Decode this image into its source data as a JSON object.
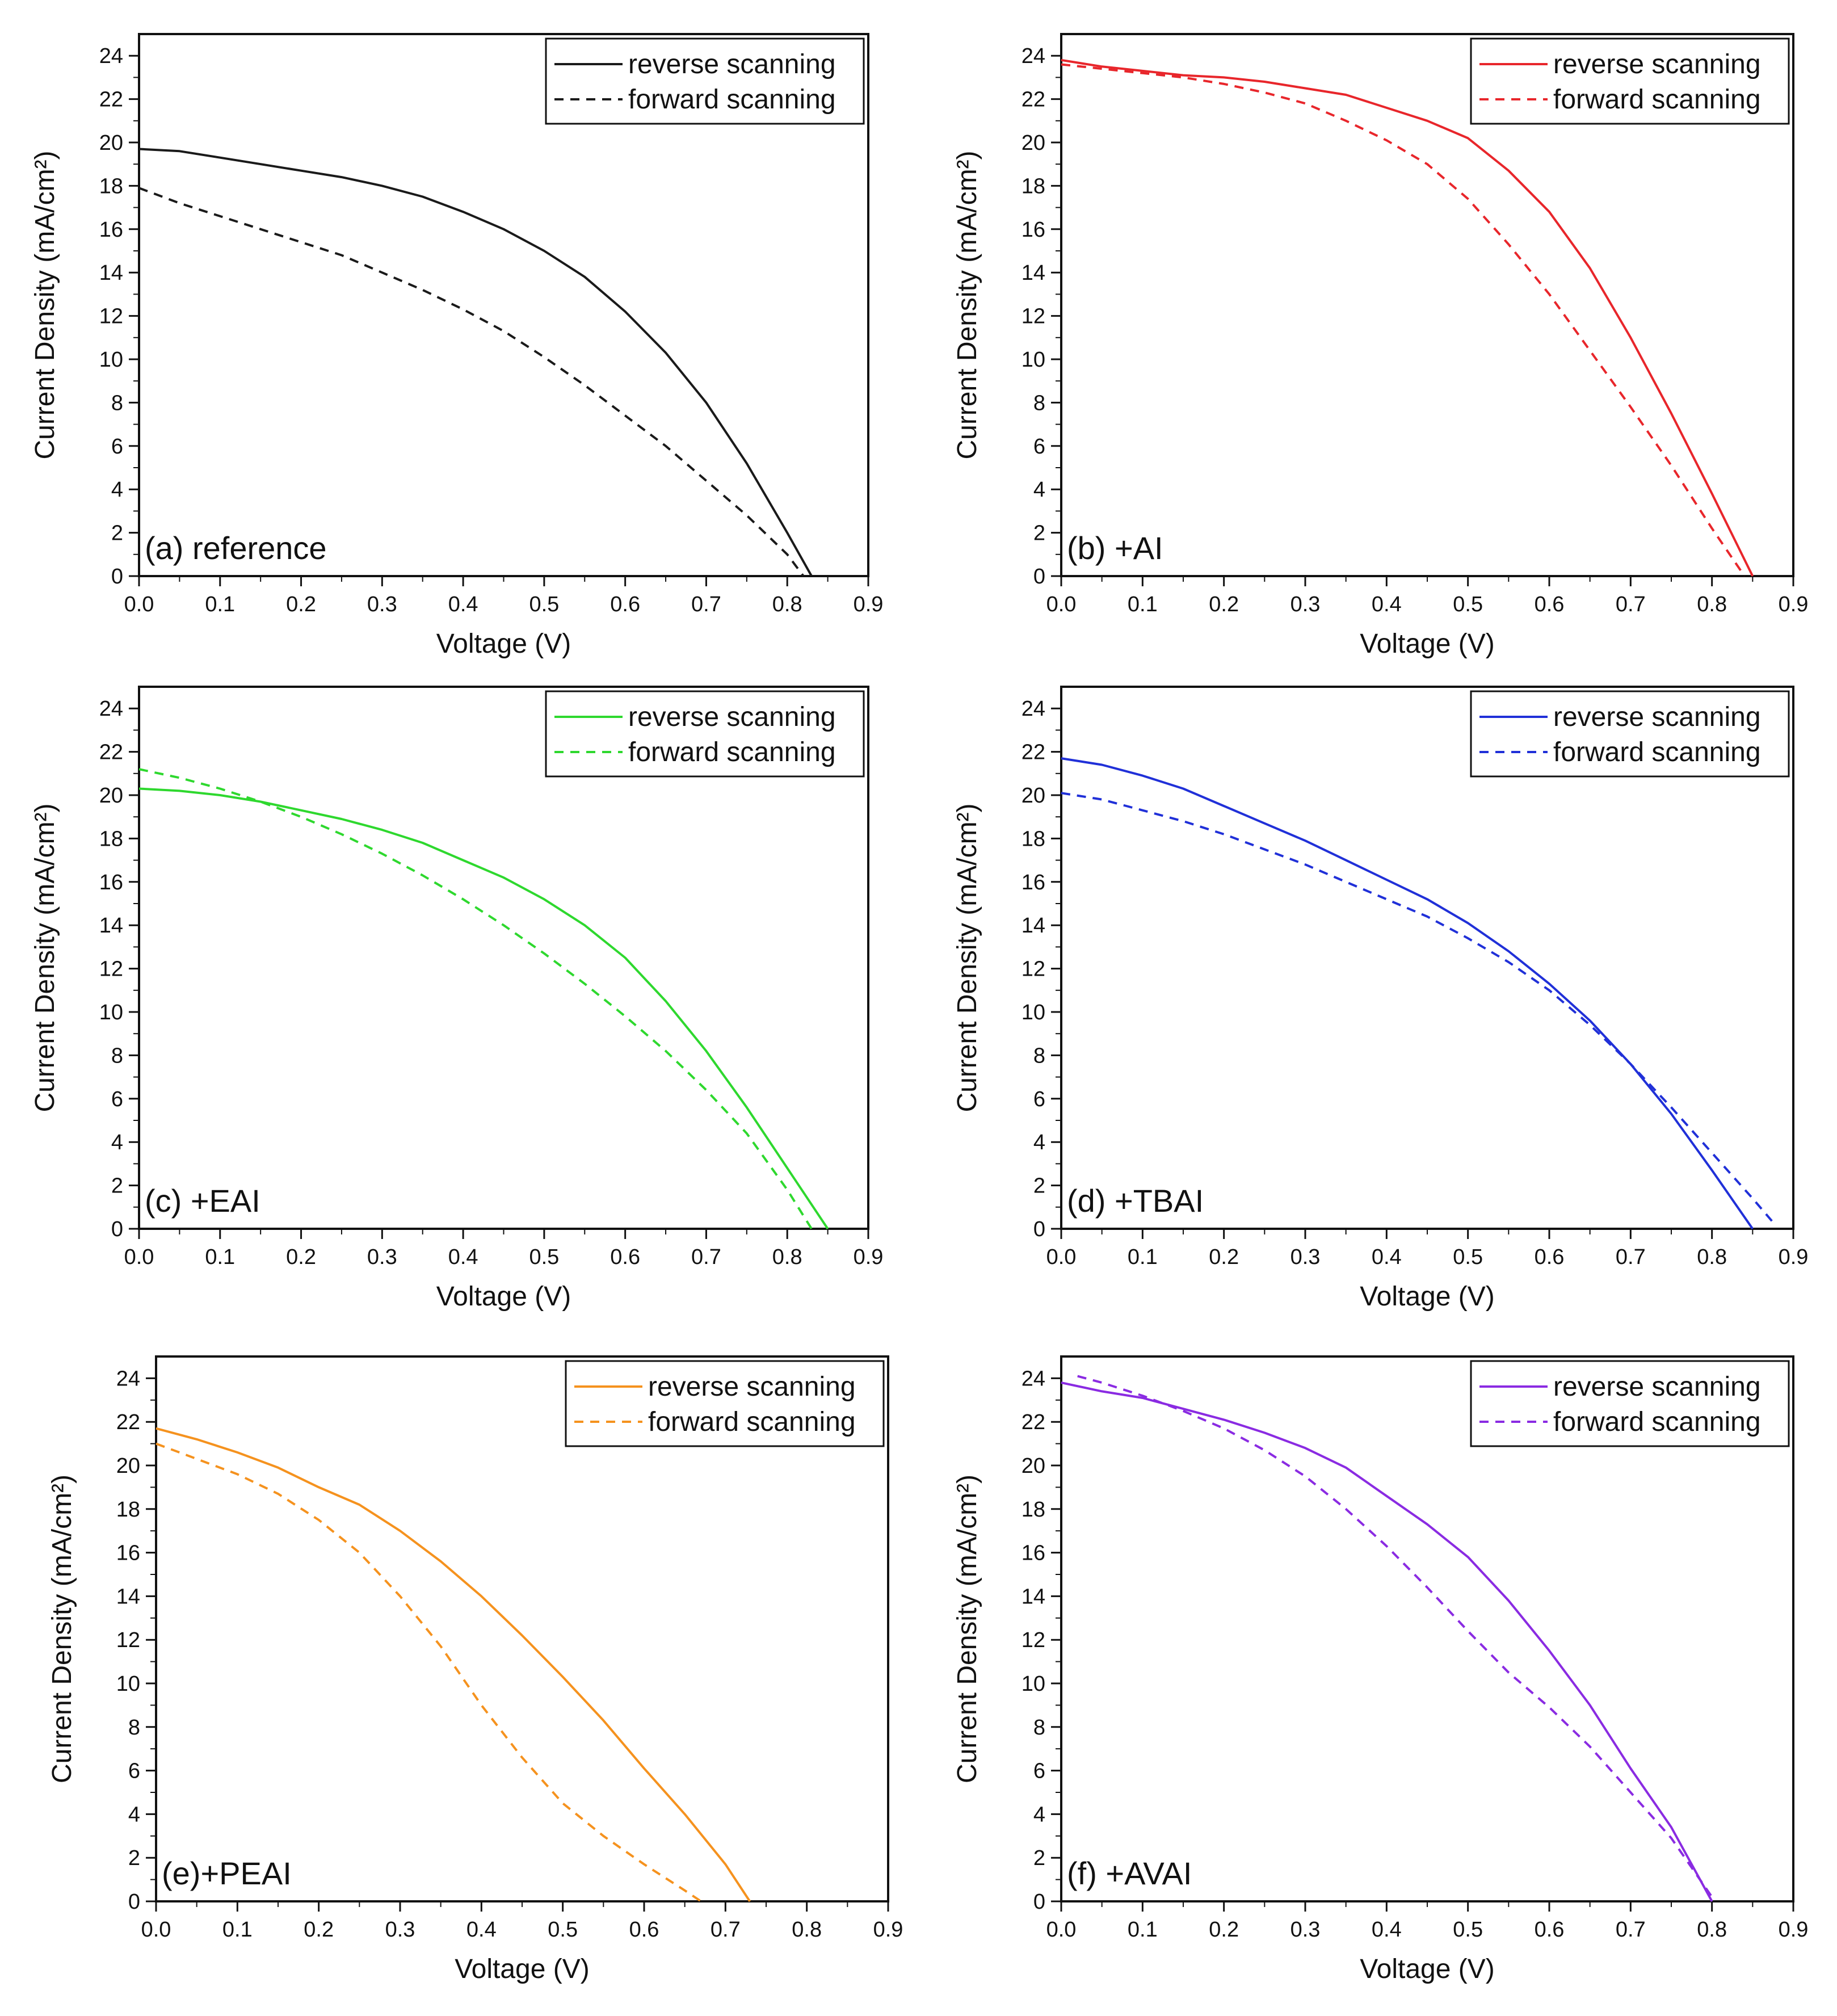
{
  "figure": {
    "series_labels": {
      "reverse": "reverse scanning",
      "forward": "forward scanning"
    }
  },
  "chart_data": [
    {
      "type": "line",
      "panel_label": "(a) reference",
      "xlabel": "Voltage (V)",
      "ylabel": "Current Density (mA/cm²)",
      "xlim": [
        0,
        0.9
      ],
      "ylim": [
        0,
        25
      ],
      "xticks": [
        "0.0",
        "0.1",
        "0.2",
        "0.3",
        "0.4",
        "0.5",
        "0.6",
        "0.7",
        "0.8",
        "0.9"
      ],
      "yticks": [
        "0",
        "2",
        "4",
        "6",
        "8",
        "10",
        "12",
        "14",
        "16",
        "18",
        "20",
        "22",
        "24"
      ],
      "color": "#1a1a1a",
      "legend": [
        "reverse scanning",
        "forward scanning"
      ],
      "series": [
        {
          "name": "reverse scanning",
          "style": "solid",
          "x": [
            0,
            0.05,
            0.1,
            0.15,
            0.2,
            0.25,
            0.3,
            0.35,
            0.4,
            0.45,
            0.5,
            0.55,
            0.6,
            0.65,
            0.7,
            0.75,
            0.8,
            0.83
          ],
          "y": [
            19.7,
            19.6,
            19.3,
            19.0,
            18.7,
            18.4,
            18.0,
            17.5,
            16.8,
            16.0,
            15.0,
            13.8,
            12.2,
            10.3,
            8.0,
            5.2,
            2.0,
            0
          ]
        },
        {
          "name": "forward scanning",
          "style": "dashed",
          "x": [
            0,
            0.05,
            0.1,
            0.15,
            0.2,
            0.25,
            0.3,
            0.35,
            0.4,
            0.45,
            0.5,
            0.55,
            0.6,
            0.65,
            0.7,
            0.75,
            0.8,
            0.82
          ],
          "y": [
            17.9,
            17.2,
            16.6,
            16.0,
            15.4,
            14.8,
            14.0,
            13.2,
            12.3,
            11.3,
            10.1,
            8.8,
            7.4,
            6.0,
            4.4,
            2.8,
            1.0,
            0
          ]
        }
      ]
    },
    {
      "type": "line",
      "panel_label": "(b) +AI",
      "xlabel": "Voltage (V)",
      "ylabel": "Current Density (mA/cm²)",
      "xlim": [
        0,
        0.9
      ],
      "ylim": [
        0,
        25
      ],
      "xticks": [
        "0.0",
        "0.1",
        "0.2",
        "0.3",
        "0.4",
        "0.5",
        "0.6",
        "0.7",
        "0.8",
        "0.9"
      ],
      "yticks": [
        "0",
        "2",
        "4",
        "6",
        "8",
        "10",
        "12",
        "14",
        "16",
        "18",
        "20",
        "22",
        "24"
      ],
      "color": "#e8262b",
      "legend": [
        "reverse scanning",
        "forward scanning"
      ],
      "series": [
        {
          "name": "reverse scanning",
          "style": "solid",
          "x": [
            0,
            0.05,
            0.1,
            0.15,
            0.2,
            0.25,
            0.3,
            0.35,
            0.4,
            0.45,
            0.5,
            0.55,
            0.6,
            0.65,
            0.7,
            0.75,
            0.8,
            0.85
          ],
          "y": [
            23.8,
            23.5,
            23.3,
            23.1,
            23.0,
            22.8,
            22.5,
            22.2,
            21.6,
            21.0,
            20.2,
            18.7,
            16.8,
            14.2,
            11.0,
            7.5,
            3.8,
            0
          ]
        },
        {
          "name": "forward scanning",
          "style": "dashed",
          "x": [
            0,
            0.05,
            0.1,
            0.15,
            0.2,
            0.25,
            0.3,
            0.35,
            0.4,
            0.45,
            0.5,
            0.55,
            0.6,
            0.65,
            0.7,
            0.75,
            0.8,
            0.84
          ],
          "y": [
            23.6,
            23.4,
            23.2,
            23.0,
            22.7,
            22.3,
            21.8,
            21.0,
            20.1,
            19.0,
            17.4,
            15.3,
            13.0,
            10.4,
            7.8,
            5.1,
            2.2,
            0
          ]
        }
      ]
    },
    {
      "type": "line",
      "panel_label": "(c) +EAI",
      "xlabel": "Voltage (V)",
      "ylabel": "Current Density (mA/cm²)",
      "xlim": [
        0,
        0.9
      ],
      "ylim": [
        0,
        25
      ],
      "xticks": [
        "0.0",
        "0.1",
        "0.2",
        "0.3",
        "0.4",
        "0.5",
        "0.6",
        "0.7",
        "0.8",
        "0.9"
      ],
      "yticks": [
        "0",
        "2",
        "4",
        "6",
        "8",
        "10",
        "12",
        "14",
        "16",
        "18",
        "20",
        "22",
        "24"
      ],
      "color": "#2ed82e",
      "legend": [
        "reverse scanning",
        "forward scanning"
      ],
      "series": [
        {
          "name": "reverse scanning",
          "style": "solid",
          "x": [
            0,
            0.05,
            0.1,
            0.15,
            0.2,
            0.25,
            0.3,
            0.35,
            0.4,
            0.45,
            0.5,
            0.55,
            0.6,
            0.65,
            0.7,
            0.75,
            0.8,
            0.85
          ],
          "y": [
            20.3,
            20.2,
            20.0,
            19.7,
            19.3,
            18.9,
            18.4,
            17.8,
            17.0,
            16.2,
            15.2,
            14.0,
            12.5,
            10.5,
            8.2,
            5.6,
            2.8,
            0
          ]
        },
        {
          "name": "forward scanning",
          "style": "dashed",
          "x": [
            0,
            0.05,
            0.1,
            0.15,
            0.2,
            0.25,
            0.3,
            0.35,
            0.4,
            0.45,
            0.5,
            0.55,
            0.6,
            0.65,
            0.7,
            0.75,
            0.8,
            0.83
          ],
          "y": [
            21.2,
            20.8,
            20.3,
            19.7,
            19.0,
            18.2,
            17.3,
            16.3,
            15.2,
            14.0,
            12.7,
            11.3,
            9.8,
            8.2,
            6.4,
            4.4,
            1.8,
            0
          ]
        }
      ]
    },
    {
      "type": "line",
      "panel_label": "(d) +TBAI",
      "xlabel": "Voltage (V)",
      "ylabel": "Current Density (mA/cm²)",
      "xlim": [
        0,
        0.9
      ],
      "ylim": [
        0,
        25
      ],
      "xticks": [
        "0.0",
        "0.1",
        "0.2",
        "0.3",
        "0.4",
        "0.5",
        "0.6",
        "0.7",
        "0.8",
        "0.9"
      ],
      "yticks": [
        "0",
        "2",
        "4",
        "6",
        "8",
        "10",
        "12",
        "14",
        "16",
        "18",
        "20",
        "22",
        "24"
      ],
      "color": "#2030d8",
      "legend": [
        "reverse scanning",
        "forward scanning"
      ],
      "series": [
        {
          "name": "reverse scanning",
          "style": "solid",
          "x": [
            0,
            0.05,
            0.1,
            0.15,
            0.2,
            0.25,
            0.3,
            0.35,
            0.4,
            0.45,
            0.5,
            0.55,
            0.6,
            0.65,
            0.7,
            0.75,
            0.8,
            0.85
          ],
          "y": [
            21.7,
            21.4,
            20.9,
            20.3,
            19.5,
            18.7,
            17.9,
            17.0,
            16.1,
            15.2,
            14.1,
            12.8,
            11.3,
            9.6,
            7.6,
            5.3,
            2.7,
            0
          ]
        },
        {
          "name": "forward scanning",
          "style": "dashed",
          "x": [
            0,
            0.05,
            0.1,
            0.15,
            0.2,
            0.25,
            0.3,
            0.35,
            0.4,
            0.45,
            0.5,
            0.55,
            0.6,
            0.65,
            0.7,
            0.75,
            0.8,
            0.85,
            0.875
          ],
          "y": [
            20.1,
            19.8,
            19.3,
            18.8,
            18.2,
            17.5,
            16.8,
            16.0,
            15.2,
            14.4,
            13.4,
            12.3,
            11.0,
            9.4,
            7.6,
            5.6,
            3.5,
            1.4,
            0.3
          ]
        }
      ]
    },
    {
      "type": "line",
      "panel_label": "(e)+PEAI",
      "xlabel": "Voltage (V)",
      "ylabel": "Current Density (mA/cm²)",
      "xlim": [
        0,
        0.9
      ],
      "ylim": [
        0,
        25
      ],
      "xticks": [
        "0.0",
        "0.1",
        "0.2",
        "0.3",
        "0.4",
        "0.5",
        "0.6",
        "0.7",
        "0.8",
        "0.9"
      ],
      "yticks": [
        "0",
        "2",
        "4",
        "6",
        "8",
        "10",
        "12",
        "14",
        "16",
        "18",
        "20",
        "22",
        "24"
      ],
      "color": "#f5921e",
      "legend": [
        "reverse scanning",
        "forward scanning"
      ],
      "series": [
        {
          "name": "reverse scanning",
          "style": "solid",
          "x": [
            0,
            0.05,
            0.1,
            0.15,
            0.2,
            0.25,
            0.3,
            0.35,
            0.4,
            0.45,
            0.5,
            0.55,
            0.6,
            0.65,
            0.7,
            0.73
          ],
          "y": [
            21.7,
            21.2,
            20.6,
            19.9,
            19.0,
            18.2,
            17.0,
            15.6,
            14.0,
            12.2,
            10.3,
            8.3,
            6.1,
            4.0,
            1.7,
            0
          ]
        },
        {
          "name": "forward scanning",
          "style": "dashed",
          "x": [
            0,
            0.05,
            0.1,
            0.15,
            0.2,
            0.25,
            0.3,
            0.35,
            0.4,
            0.45,
            0.5,
            0.55,
            0.6,
            0.65,
            0.67
          ],
          "y": [
            21.0,
            20.3,
            19.6,
            18.7,
            17.5,
            16.0,
            14.0,
            11.7,
            9.0,
            6.6,
            4.5,
            3.0,
            1.7,
            0.5,
            0
          ]
        }
      ]
    },
    {
      "type": "line",
      "panel_label": "(f) +AVAI",
      "xlabel": "Voltage (V)",
      "ylabel": "Current Density (mA/cm²)",
      "xlim": [
        0,
        0.9
      ],
      "ylim": [
        0,
        25
      ],
      "xticks": [
        "0.0",
        "0.1",
        "0.2",
        "0.3",
        "0.4",
        "0.5",
        "0.6",
        "0.7",
        "0.8",
        "0.9"
      ],
      "yticks": [
        "0",
        "2",
        "4",
        "6",
        "8",
        "10",
        "12",
        "14",
        "16",
        "18",
        "20",
        "22",
        "24"
      ],
      "color": "#8a2be2",
      "legend": [
        "reverse scanning",
        "forward scanning"
      ],
      "series": [
        {
          "name": "reverse scanning",
          "style": "solid",
          "x": [
            0,
            0.05,
            0.1,
            0.15,
            0.2,
            0.25,
            0.3,
            0.35,
            0.4,
            0.45,
            0.5,
            0.55,
            0.6,
            0.65,
            0.7,
            0.75,
            0.8
          ],
          "y": [
            23.8,
            23.4,
            23.1,
            22.6,
            22.1,
            21.5,
            20.8,
            19.9,
            18.6,
            17.3,
            15.8,
            13.8,
            11.5,
            9.0,
            6.1,
            3.4,
            0
          ]
        },
        {
          "name": "forward scanning",
          "style": "dashed",
          "x": [
            0.02,
            0.05,
            0.1,
            0.15,
            0.2,
            0.25,
            0.3,
            0.35,
            0.4,
            0.45,
            0.5,
            0.55,
            0.6,
            0.65,
            0.7,
            0.75,
            0.8
          ],
          "y": [
            24.1,
            23.8,
            23.2,
            22.5,
            21.7,
            20.7,
            19.5,
            18.0,
            16.3,
            14.4,
            12.4,
            10.5,
            8.9,
            7.1,
            5.0,
            2.9,
            0.2
          ]
        }
      ]
    }
  ]
}
